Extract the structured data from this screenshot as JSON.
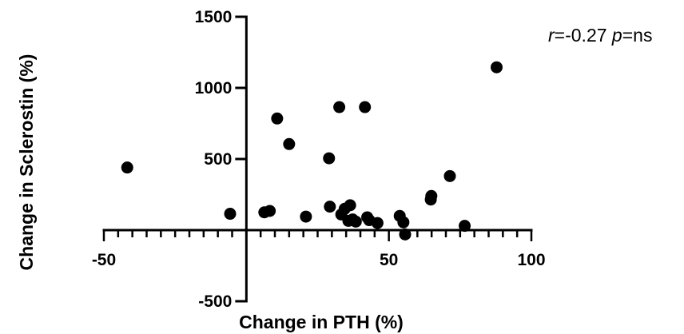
{
  "chart_data": {
    "type": "scatter",
    "title": "",
    "xlabel": "Change in PTH (%)",
    "ylabel": "Change in Sclerostin (%)",
    "xlim": [
      -50,
      100
    ],
    "ylim": [
      -500,
      1500
    ],
    "xticks": [
      -50,
      50,
      100
    ],
    "xtick_labels": [
      "-50",
      "50",
      "100"
    ],
    "yticks": [
      -500,
      500,
      1000,
      1500
    ],
    "ytick_labels": [
      "-500",
      "500",
      "1000",
      "1500"
    ],
    "x_minor_tick_step": 5,
    "y_axis_at_x": 0,
    "x_axis_at_y": 0,
    "grid": false,
    "legend": null,
    "marker_color": "#000000",
    "annotation": {
      "r_symbol": "r",
      "r_value": "=-0.27 ",
      "p_symbol": "p",
      "p_value": "=ns"
    },
    "points": [
      {
        "x": -41.8,
        "y": 440
      },
      {
        "x": -5.7,
        "y": 115
      },
      {
        "x": 6.3,
        "y": 125
      },
      {
        "x": 8.2,
        "y": 135
      },
      {
        "x": 10.8,
        "y": 785
      },
      {
        "x": 15.0,
        "y": 605
      },
      {
        "x": 20.9,
        "y": 95
      },
      {
        "x": 29.0,
        "y": 505
      },
      {
        "x": 29.3,
        "y": 165
      },
      {
        "x": 32.6,
        "y": 865
      },
      {
        "x": 33.3,
        "y": 110
      },
      {
        "x": 34.5,
        "y": 150
      },
      {
        "x": 35.8,
        "y": 65
      },
      {
        "x": 36.4,
        "y": 175
      },
      {
        "x": 37.3,
        "y": 75
      },
      {
        "x": 38.4,
        "y": 60
      },
      {
        "x": 41.6,
        "y": 865
      },
      {
        "x": 42.4,
        "y": 90
      },
      {
        "x": 43.1,
        "y": 70
      },
      {
        "x": 46.0,
        "y": 50
      },
      {
        "x": 53.8,
        "y": 100
      },
      {
        "x": 55.1,
        "y": 55
      },
      {
        "x": 55.7,
        "y": -30
      },
      {
        "x": 64.7,
        "y": 215
      },
      {
        "x": 64.9,
        "y": 240
      },
      {
        "x": 71.4,
        "y": 380
      },
      {
        "x": 76.6,
        "y": 30
      },
      {
        "x": 87.8,
        "y": 1145
      }
    ]
  }
}
